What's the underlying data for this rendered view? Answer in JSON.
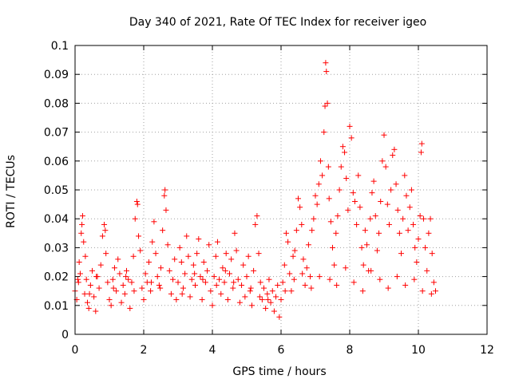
{
  "chart_data": {
    "type": "scatter",
    "title": "Day 340 of 2021, Rate Of TEC Index for receiver igeo",
    "xlabel": "GPS time / hours",
    "ylabel": "ROTI / TECUs",
    "xlim": [
      0,
      12
    ],
    "ylim": [
      0,
      0.1
    ],
    "grid": true,
    "marker": "+",
    "color": "#ff0000",
    "x_ticks": [
      0,
      2,
      4,
      6,
      8,
      10,
      12
    ],
    "x_tick_labels": [
      "0",
      "2",
      "4",
      "6",
      "8",
      "10",
      "12"
    ],
    "y_ticks": [
      0,
      0.01,
      0.02,
      0.03,
      0.04,
      0.05,
      0.06,
      0.07,
      0.08,
      0.09,
      0.1
    ],
    "y_tick_labels": [
      "0",
      "0.01",
      "0.02",
      "0.03",
      "0.04",
      "0.05",
      "0.06",
      "0.07",
      "0.08",
      "0.09",
      "0.1"
    ],
    "series": [
      {
        "name": "ROTI",
        "points": [
          [
            0.0,
            0.015
          ],
          [
            0.05,
            0.012
          ],
          [
            0.1,
            0.018
          ],
          [
            0.12,
            0.025
          ],
          [
            0.15,
            0.021
          ],
          [
            0.18,
            0.035
          ],
          [
            0.2,
            0.038
          ],
          [
            0.22,
            0.041
          ],
          [
            0.25,
            0.032
          ],
          [
            0.28,
            0.014
          ],
          [
            0.3,
            0.027
          ],
          [
            0.33,
            0.019
          ],
          [
            0.36,
            0.011
          ],
          [
            0.4,
            0.009
          ],
          [
            0.45,
            0.017
          ],
          [
            0.5,
            0.022
          ],
          [
            0.55,
            0.013
          ],
          [
            0.6,
            0.008
          ],
          [
            0.65,
            0.02
          ],
          [
            0.7,
            0.016
          ],
          [
            0.75,
            0.024
          ],
          [
            0.8,
            0.034
          ],
          [
            0.85,
            0.038
          ],
          [
            0.88,
            0.036
          ],
          [
            0.9,
            0.028
          ],
          [
            0.95,
            0.018
          ],
          [
            1.0,
            0.012
          ],
          [
            1.05,
            0.01
          ],
          [
            1.1,
            0.019
          ],
          [
            1.15,
            0.023
          ],
          [
            1.2,
            0.015
          ],
          [
            1.25,
            0.026
          ],
          [
            1.3,
            0.021
          ],
          [
            1.35,
            0.011
          ],
          [
            1.4,
            0.017
          ],
          [
            1.45,
            0.014
          ],
          [
            1.5,
            0.022
          ],
          [
            1.55,
            0.019
          ],
          [
            1.6,
            0.009
          ],
          [
            1.65,
            0.018
          ],
          [
            1.7,
            0.027
          ],
          [
            1.75,
            0.04
          ],
          [
            1.8,
            0.046
          ],
          [
            1.82,
            0.045
          ],
          [
            1.85,
            0.034
          ],
          [
            1.9,
            0.029
          ],
          [
            1.95,
            0.016
          ],
          [
            2.0,
            0.012
          ],
          [
            2.05,
            0.021
          ],
          [
            2.1,
            0.018
          ],
          [
            2.15,
            0.025
          ],
          [
            2.2,
            0.015
          ],
          [
            2.25,
            0.032
          ],
          [
            2.3,
            0.039
          ],
          [
            2.35,
            0.028
          ],
          [
            2.4,
            0.02
          ],
          [
            2.45,
            0.017
          ],
          [
            2.5,
            0.023
          ],
          [
            2.55,
            0.036
          ],
          [
            2.6,
            0.048
          ],
          [
            2.62,
            0.05
          ],
          [
            2.65,
            0.043
          ],
          [
            2.7,
            0.031
          ],
          [
            2.75,
            0.022
          ],
          [
            2.8,
            0.014
          ],
          [
            2.85,
            0.019
          ],
          [
            2.9,
            0.026
          ],
          [
            2.95,
            0.012
          ],
          [
            3.0,
            0.018
          ],
          [
            3.05,
            0.03
          ],
          [
            3.1,
            0.025
          ],
          [
            3.15,
            0.016
          ],
          [
            3.2,
            0.021
          ],
          [
            3.25,
            0.034
          ],
          [
            3.3,
            0.027
          ],
          [
            3.35,
            0.013
          ],
          [
            3.4,
            0.019
          ],
          [
            3.45,
            0.024
          ],
          [
            3.5,
            0.017
          ],
          [
            3.55,
            0.028
          ],
          [
            3.6,
            0.033
          ],
          [
            3.65,
            0.02
          ],
          [
            3.7,
            0.012
          ],
          [
            3.75,
            0.025
          ],
          [
            3.8,
            0.018
          ],
          [
            3.85,
            0.022
          ],
          [
            3.9,
            0.031
          ],
          [
            3.95,
            0.015
          ],
          [
            4.0,
            0.01
          ],
          [
            4.05,
            0.02
          ],
          [
            4.1,
            0.027
          ],
          [
            4.15,
            0.032
          ],
          [
            4.2,
            0.019
          ],
          [
            4.25,
            0.014
          ],
          [
            4.3,
            0.023
          ],
          [
            4.35,
            0.018
          ],
          [
            4.4,
            0.028
          ],
          [
            4.45,
            0.012
          ],
          [
            4.5,
            0.021
          ],
          [
            4.55,
            0.026
          ],
          [
            4.6,
            0.016
          ],
          [
            4.65,
            0.035
          ],
          [
            4.7,
            0.029
          ],
          [
            4.75,
            0.019
          ],
          [
            4.8,
            0.011
          ],
          [
            4.85,
            0.017
          ],
          [
            4.9,
            0.024
          ],
          [
            4.95,
            0.013
          ],
          [
            5.0,
            0.02
          ],
          [
            5.05,
            0.027
          ],
          [
            5.1,
            0.015
          ],
          [
            5.15,
            0.01
          ],
          [
            5.2,
            0.022
          ],
          [
            5.25,
            0.038
          ],
          [
            5.3,
            0.041
          ],
          [
            5.35,
            0.028
          ],
          [
            5.4,
            0.018
          ],
          [
            5.45,
            0.012
          ],
          [
            5.5,
            0.016
          ],
          [
            5.55,
            0.009
          ],
          [
            5.6,
            0.014
          ],
          [
            5.65,
            0.019
          ],
          [
            5.7,
            0.011
          ],
          [
            5.75,
            0.015
          ],
          [
            5.8,
            0.008
          ],
          [
            5.85,
            0.013
          ],
          [
            5.9,
            0.017
          ],
          [
            5.95,
            0.006
          ],
          [
            6.0,
            0.012
          ],
          [
            6.05,
            0.018
          ],
          [
            6.1,
            0.024
          ],
          [
            6.15,
            0.035
          ],
          [
            6.2,
            0.032
          ],
          [
            6.25,
            0.021
          ],
          [
            6.3,
            0.015
          ],
          [
            6.35,
            0.027
          ],
          [
            6.4,
            0.029
          ],
          [
            6.45,
            0.036
          ],
          [
            6.5,
            0.047
          ],
          [
            6.55,
            0.044
          ],
          [
            6.6,
            0.038
          ],
          [
            6.65,
            0.026
          ],
          [
            6.7,
            0.017
          ],
          [
            6.75,
            0.023
          ],
          [
            6.8,
            0.031
          ],
          [
            6.85,
            0.02
          ],
          [
            6.9,
            0.036
          ],
          [
            6.95,
            0.04
          ],
          [
            7.0,
            0.048
          ],
          [
            7.05,
            0.045
          ],
          [
            7.1,
            0.052
          ],
          [
            7.15,
            0.06
          ],
          [
            7.2,
            0.055
          ],
          [
            7.25,
            0.07
          ],
          [
            7.28,
            0.079
          ],
          [
            7.3,
            0.094
          ],
          [
            7.32,
            0.091
          ],
          [
            7.35,
            0.08
          ],
          [
            7.38,
            0.058
          ],
          [
            7.4,
            0.047
          ],
          [
            7.45,
            0.039
          ],
          [
            7.5,
            0.03
          ],
          [
            7.55,
            0.024
          ],
          [
            7.6,
            0.035
          ],
          [
            7.65,
            0.041
          ],
          [
            7.7,
            0.05
          ],
          [
            7.75,
            0.058
          ],
          [
            7.8,
            0.065
          ],
          [
            7.85,
            0.063
          ],
          [
            7.9,
            0.054
          ],
          [
            7.95,
            0.043
          ],
          [
            8.0,
            0.072
          ],
          [
            8.05,
            0.068
          ],
          [
            8.1,
            0.049
          ],
          [
            8.15,
            0.046
          ],
          [
            8.2,
            0.038
          ],
          [
            8.25,
            0.055
          ],
          [
            8.3,
            0.044
          ],
          [
            8.35,
            0.03
          ],
          [
            8.4,
            0.024
          ],
          [
            8.45,
            0.036
          ],
          [
            8.5,
            0.031
          ],
          [
            8.55,
            0.022
          ],
          [
            8.6,
            0.04
          ],
          [
            8.65,
            0.049
          ],
          [
            8.7,
            0.053
          ],
          [
            8.75,
            0.041
          ],
          [
            8.8,
            0.029
          ],
          [
            8.85,
            0.035
          ],
          [
            8.9,
            0.046
          ],
          [
            8.95,
            0.06
          ],
          [
            9.0,
            0.069
          ],
          [
            9.05,
            0.058
          ],
          [
            9.1,
            0.045
          ],
          [
            9.15,
            0.038
          ],
          [
            9.2,
            0.05
          ],
          [
            9.25,
            0.062
          ],
          [
            9.3,
            0.064
          ],
          [
            9.35,
            0.052
          ],
          [
            9.4,
            0.043
          ],
          [
            9.45,
            0.035
          ],
          [
            9.5,
            0.028
          ],
          [
            9.55,
            0.04
          ],
          [
            9.6,
            0.055
          ],
          [
            9.65,
            0.048
          ],
          [
            9.7,
            0.036
          ],
          [
            9.75,
            0.044
          ],
          [
            9.8,
            0.05
          ],
          [
            9.85,
            0.038
          ],
          [
            9.9,
            0.03
          ],
          [
            9.95,
            0.025
          ],
          [
            10.0,
            0.033
          ],
          [
            10.05,
            0.041
          ],
          [
            10.08,
            0.063
          ],
          [
            10.1,
            0.066
          ],
          [
            10.15,
            0.04
          ],
          [
            10.2,
            0.03
          ],
          [
            10.25,
            0.022
          ],
          [
            10.3,
            0.035
          ],
          [
            10.35,
            0.04
          ],
          [
            10.4,
            0.028
          ],
          [
            10.45,
            0.018
          ],
          [
            10.5,
            0.015
          ],
          [
            0.08,
            0.019
          ],
          [
            0.42,
            0.014
          ],
          [
            0.62,
            0.02
          ],
          [
            1.12,
            0.016
          ],
          [
            1.48,
            0.02
          ],
          [
            1.72,
            0.015
          ],
          [
            2.22,
            0.018
          ],
          [
            2.48,
            0.016
          ],
          [
            3.12,
            0.014
          ],
          [
            3.48,
            0.021
          ],
          [
            3.72,
            0.019
          ],
          [
            4.12,
            0.017
          ],
          [
            4.38,
            0.022
          ],
          [
            4.62,
            0.018
          ],
          [
            5.12,
            0.016
          ],
          [
            5.38,
            0.013
          ],
          [
            5.62,
            0.012
          ],
          [
            6.12,
            0.015
          ],
          [
            6.38,
            0.019
          ],
          [
            6.62,
            0.021
          ],
          [
            6.88,
            0.016
          ],
          [
            7.12,
            0.02
          ],
          [
            7.42,
            0.019
          ],
          [
            7.62,
            0.017
          ],
          [
            7.88,
            0.023
          ],
          [
            8.12,
            0.018
          ],
          [
            8.38,
            0.015
          ],
          [
            8.62,
            0.022
          ],
          [
            8.88,
            0.019
          ],
          [
            9.12,
            0.016
          ],
          [
            9.38,
            0.02
          ],
          [
            9.62,
            0.017
          ],
          [
            9.88,
            0.019
          ],
          [
            10.12,
            0.015
          ],
          [
            10.38,
            0.014
          ]
        ]
      }
    ]
  }
}
